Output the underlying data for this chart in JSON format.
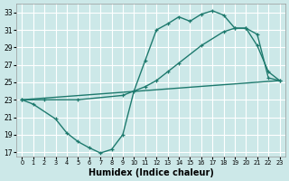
{
  "xlabel": "Humidex (Indice chaleur)",
  "background_color": "#cce8e8",
  "grid_color": "#ffffff",
  "line_color": "#1e7a6e",
  "xlim": [
    -0.5,
    23.5
  ],
  "ylim": [
    16.5,
    34
  ],
  "yticks": [
    17,
    19,
    21,
    23,
    25,
    27,
    29,
    31,
    33
  ],
  "xticks": [
    0,
    1,
    2,
    3,
    4,
    5,
    6,
    7,
    8,
    9,
    10,
    11,
    12,
    13,
    14,
    15,
    16,
    17,
    18,
    19,
    20,
    21,
    22,
    23
  ],
  "series1_x": [
    0,
    1,
    3,
    4,
    5,
    6,
    7,
    8,
    9,
    10,
    11,
    12,
    13,
    14,
    15,
    16,
    17,
    18,
    19,
    20,
    21,
    22,
    23
  ],
  "series1_y": [
    23.0,
    22.5,
    20.8,
    19.2,
    18.2,
    17.5,
    16.9,
    17.3,
    19.0,
    24.0,
    27.5,
    31.0,
    31.7,
    32.5,
    32.0,
    32.8,
    33.2,
    32.7,
    31.2,
    31.2,
    29.2,
    26.2,
    25.2
  ],
  "series2_x": [
    0,
    2,
    5,
    9,
    11,
    12,
    13,
    14,
    16,
    18,
    19,
    20,
    21,
    22,
    23
  ],
  "series2_y": [
    23.0,
    23.0,
    23.0,
    23.5,
    24.5,
    25.2,
    26.2,
    27.2,
    29.2,
    30.8,
    31.2,
    31.2,
    30.5,
    25.5,
    25.2
  ],
  "series3_x": [
    0,
    23
  ],
  "series3_y": [
    23.0,
    25.2
  ],
  "markersize": 3.5,
  "linewidth": 1.0
}
